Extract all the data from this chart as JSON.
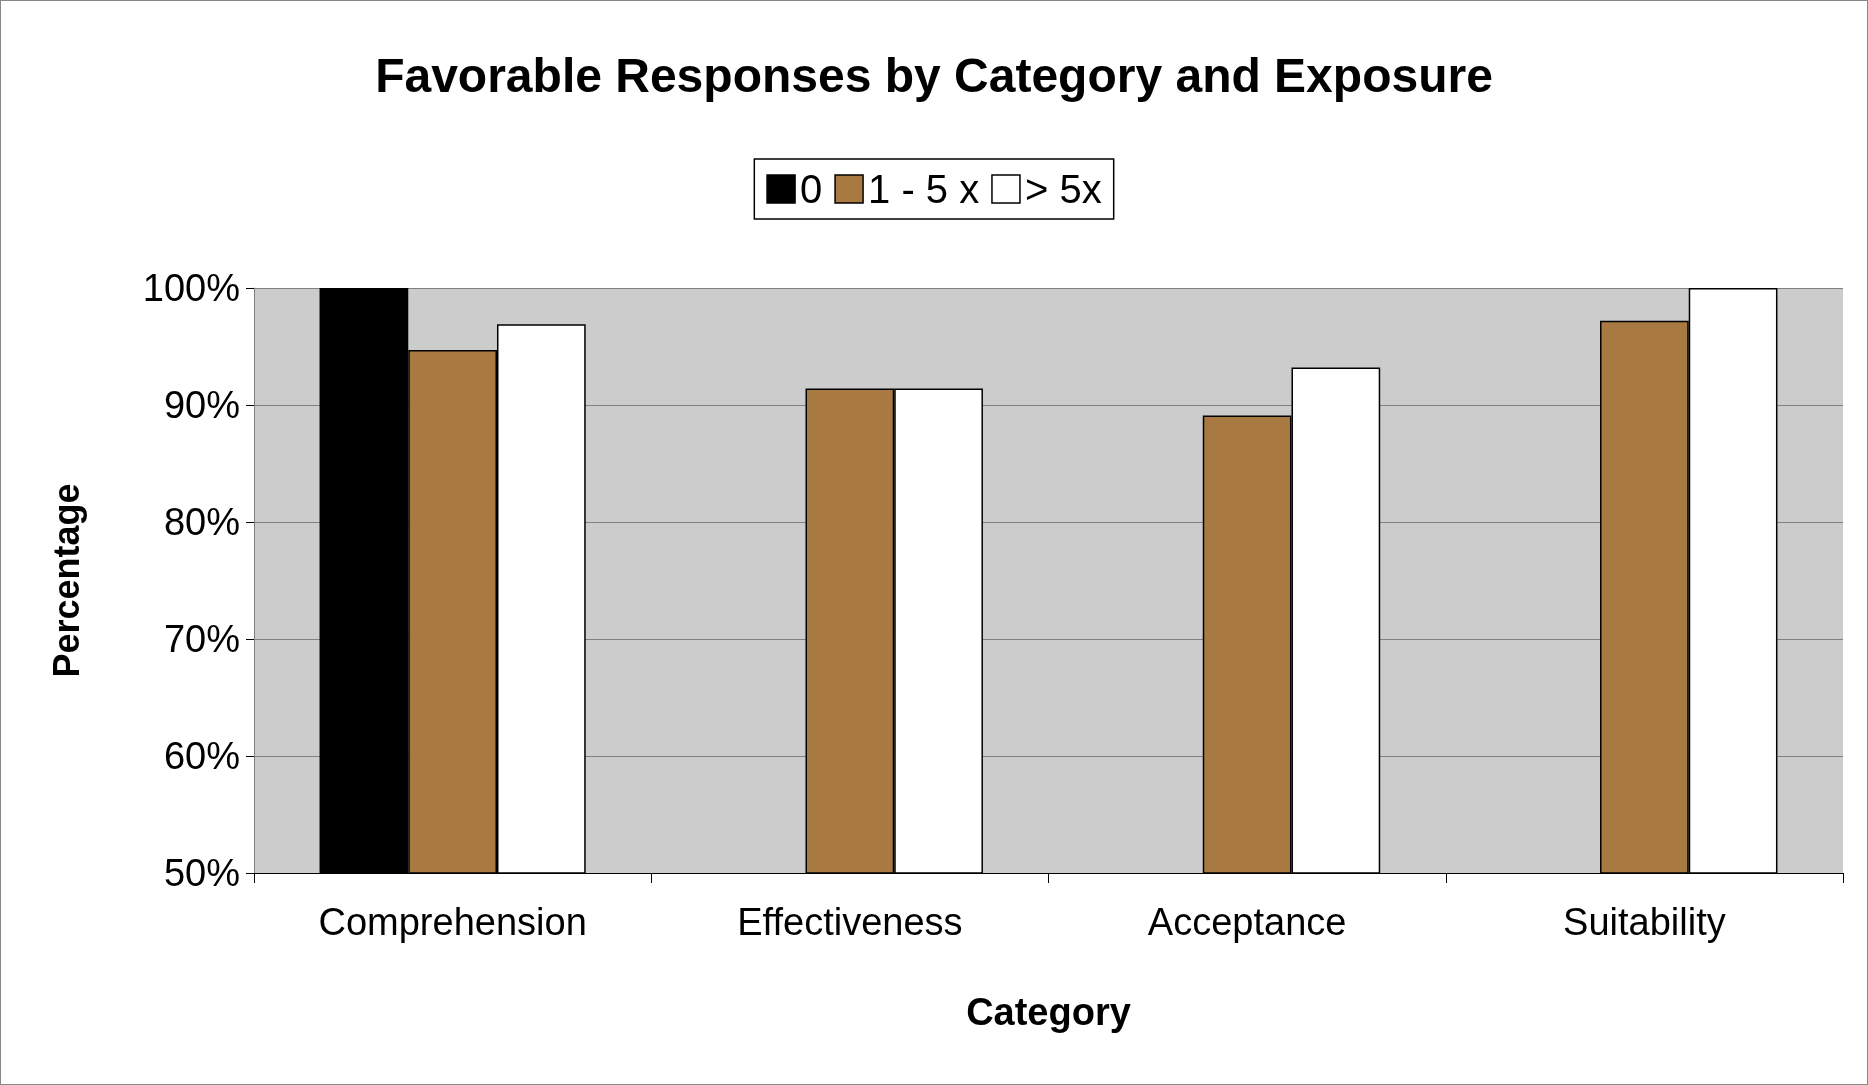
{
  "chart_data": {
    "type": "bar",
    "title": "Favorable Responses by Category and Exposure",
    "xlabel": "Category",
    "ylabel": "Percentage",
    "categories": [
      "Comprehension",
      "Effectiveness",
      "Acceptance",
      "Suitability"
    ],
    "series": [
      {
        "name": "0",
        "color": "#000000",
        "values": [
          100,
          null,
          null,
          null
        ]
      },
      {
        "name": "1 - 5 x",
        "color": "#a87941",
        "values": [
          94.7,
          91.4,
          89.1,
          97.2
        ]
      },
      {
        "name": "> 5x",
        "color": "#ffffff",
        "values": [
          96.9,
          91.4,
          93.2,
          100
        ]
      }
    ],
    "ylim": [
      50,
      100
    ],
    "yticks": [
      {
        "value": 50,
        "label": "50%"
      },
      {
        "value": 60,
        "label": "60%"
      },
      {
        "value": 70,
        "label": "70%"
      },
      {
        "value": 80,
        "label": "80%"
      },
      {
        "value": 90,
        "label": "90%"
      },
      {
        "value": 100,
        "label": "100%"
      }
    ],
    "grid": "y",
    "legend": "top"
  }
}
